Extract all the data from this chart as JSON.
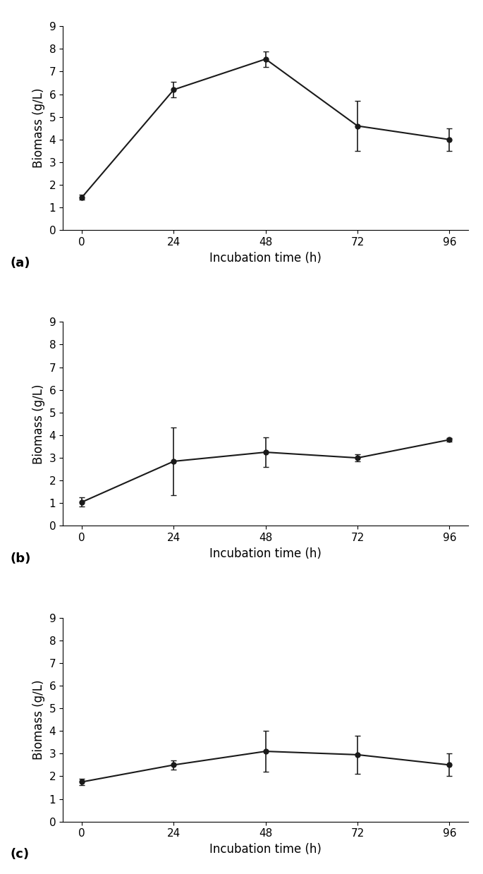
{
  "x": [
    0,
    24,
    48,
    72,
    96
  ],
  "panels": [
    {
      "label": "(a)",
      "y": [
        1.45,
        6.2,
        7.55,
        4.6,
        4.0
      ],
      "yerr": [
        0.1,
        0.35,
        0.35,
        1.1,
        0.5
      ]
    },
    {
      "label": "(b)",
      "y": [
        1.05,
        2.85,
        3.25,
        3.0,
        3.8
      ],
      "yerr": [
        0.2,
        1.5,
        0.65,
        0.15,
        0.07
      ]
    },
    {
      "label": "(c)",
      "y": [
        1.75,
        2.5,
        3.1,
        2.95,
        2.5
      ],
      "yerr": [
        0.15,
        0.2,
        0.9,
        0.85,
        0.5
      ]
    }
  ],
  "ylim": [
    0,
    9
  ],
  "yticks": [
    0,
    1,
    2,
    3,
    4,
    5,
    6,
    7,
    8,
    9
  ],
  "xticks": [
    0,
    24,
    48,
    72,
    96
  ],
  "xlabel": "Incubation time (h)",
  "ylabel": "Biomass (g/L)",
  "line_color": "#1a1a1a",
  "marker": "o",
  "markersize": 5,
  "capsize": 3,
  "linewidth": 1.5,
  "elinewidth": 1.2,
  "label_fontsize": 12,
  "tick_fontsize": 11,
  "panel_label_fontsize": 13,
  "xlim": [
    -5,
    101
  ]
}
